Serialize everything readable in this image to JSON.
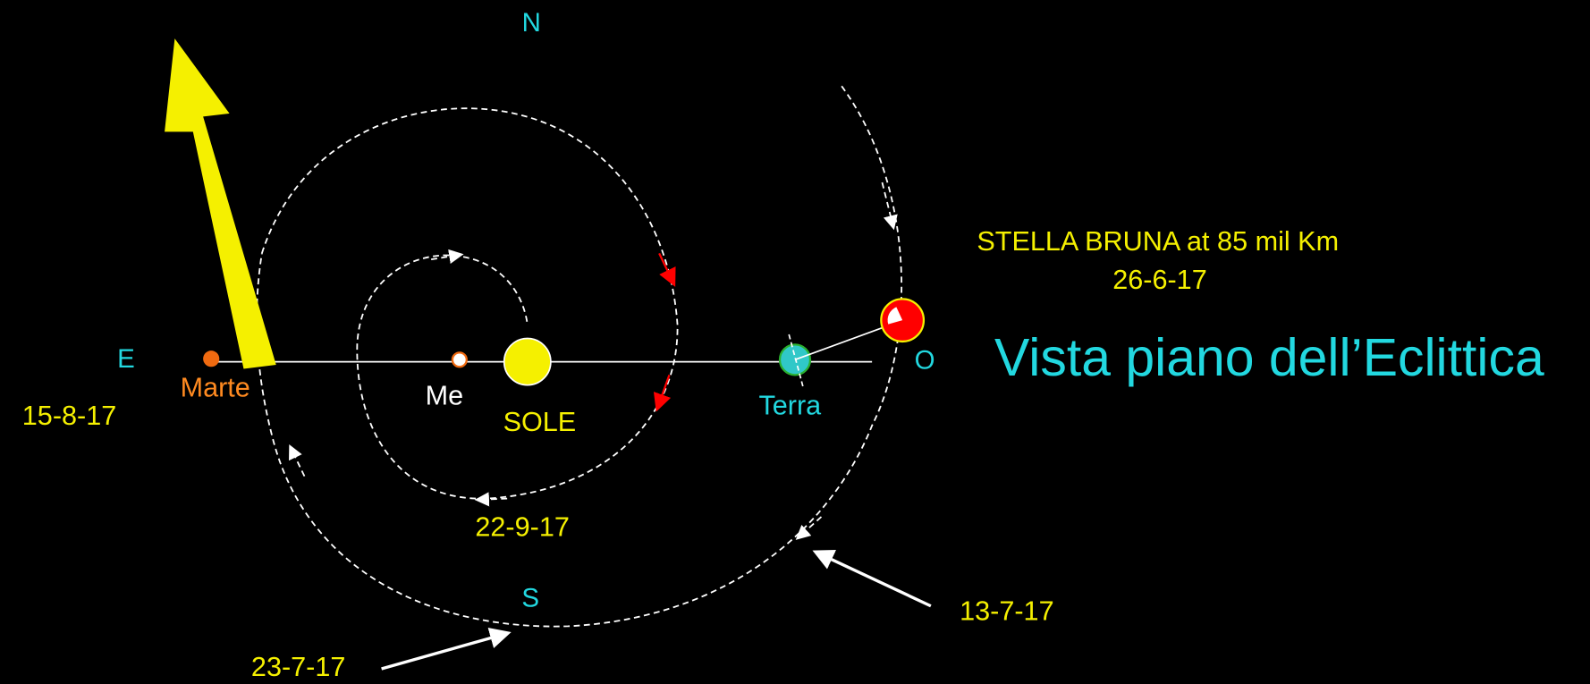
{
  "compass": {
    "north": "N",
    "south": "S",
    "east": "E",
    "west": "O"
  },
  "bodies": {
    "mars": "Marte",
    "mercury": "Me",
    "sun": "SOLE",
    "earth": "Terra"
  },
  "dates": {
    "mars": "15-8-17",
    "inner": "22-9-17",
    "south": "23-7-17",
    "earth_orbit": "13-7-17"
  },
  "object": {
    "name": "STELLA BRUNA at 85 mil Km",
    "date": "26-6-17"
  },
  "title": "Vista piano dell’Eclittica"
}
